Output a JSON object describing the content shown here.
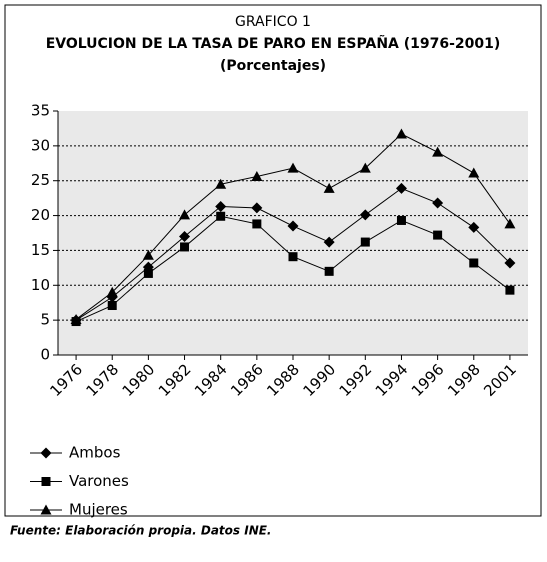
{
  "chart_data": {
    "type": "line",
    "title": "GRAFICO 1",
    "subtitle": "EVOLUCION DE LA TASA DE PARO EN ESPAÑA (1976-2001)",
    "units": "(Porcentajes)",
    "source": "Fuente: Elaboración propia. Datos INE.",
    "categories": [
      "1976",
      "1978",
      "1980",
      "1982",
      "1984",
      "1986",
      "1988",
      "1990",
      "1992",
      "1994",
      "1996",
      "1998",
      "2001"
    ],
    "series": [
      {
        "name": "Ambos",
        "color": "#000000",
        "marker": "diamond",
        "values": [
          5.0,
          8.3,
          12.6,
          17.0,
          21.3,
          21.1,
          18.5,
          16.2,
          20.1,
          23.9,
          21.8,
          18.3,
          13.2
        ]
      },
      {
        "name": "Varones",
        "color": "#000000",
        "marker": "square",
        "values": [
          4.8,
          7.1,
          11.7,
          15.5,
          19.9,
          18.8,
          14.1,
          12.0,
          16.2,
          19.3,
          17.2,
          13.2,
          9.3
        ]
      },
      {
        "name": "Mujeres",
        "color": "#000000",
        "marker": "triangle",
        "values": [
          5.1,
          9.0,
          14.3,
          20.1,
          24.5,
          25.6,
          26.8,
          23.9,
          26.8,
          31.7,
          29.1,
          26.1,
          18.8
        ]
      }
    ],
    "ylim": [
      0,
      35
    ],
    "yticks": [
      0,
      5,
      10,
      15,
      20,
      25,
      30,
      35
    ],
    "grid": true
  }
}
